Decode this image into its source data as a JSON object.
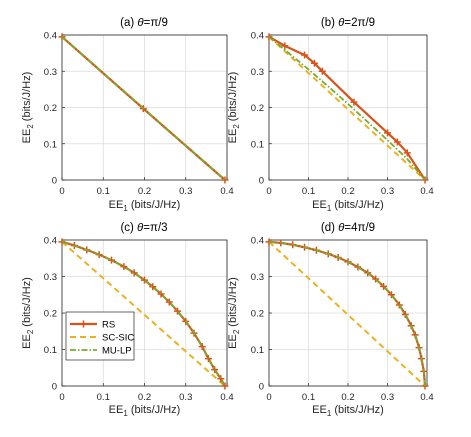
{
  "figure": {
    "xlabel_main": "EE",
    "xlabel_sub": "1",
    "xlabel_units": "(bits/J/Hz)",
    "ylabel_main": "EE",
    "ylabel_sub": "2",
    "ylabel_units": "(bits/J/Hz)"
  },
  "legend": {
    "rs": "RS",
    "scsic": "SC-SIC",
    "mulp": "MU-LP"
  },
  "colors": {
    "rs": "#d95319",
    "scsic": "#edb120",
    "mulp": "#77ac30"
  },
  "chart_data": [
    {
      "type": "line",
      "title_prefix": "(a) ",
      "title_theta": "θ",
      "title_expr": "=π/9",
      "xlim": [
        0,
        0.4
      ],
      "ylim": [
        0,
        0.4
      ],
      "xticks": [
        "0",
        "0.1",
        "0.2",
        "0.3",
        "0.4"
      ],
      "yticks": [
        "0",
        "0.1",
        "0.2",
        "0.3",
        "0.4"
      ],
      "grid": true,
      "series": [
        {
          "name": "RS",
          "x": [
            0,
            0.197,
            0.395
          ],
          "y": [
            0.395,
            0.197,
            0
          ]
        },
        {
          "name": "SC-SIC",
          "x": [
            0,
            0.395
          ],
          "y": [
            0.395,
            0
          ]
        },
        {
          "name": "MU-LP",
          "x": [
            0,
            0.395
          ],
          "y": [
            0.395,
            0
          ]
        }
      ]
    },
    {
      "type": "line",
      "title_prefix": "(b) ",
      "title_theta": "θ",
      "title_expr": "=2π/9",
      "xlim": [
        0,
        0.4
      ],
      "ylim": [
        0,
        0.4
      ],
      "xticks": [
        "0",
        "0.1",
        "0.2",
        "0.3",
        "0.4"
      ],
      "yticks": [
        "0",
        "0.1",
        "0.2",
        "0.3",
        "0.4"
      ],
      "grid": true,
      "series": [
        {
          "name": "RS",
          "x": [
            0,
            0.04,
            0.09,
            0.115,
            0.135,
            0.215,
            0.3,
            0.325,
            0.35,
            0.395
          ],
          "y": [
            0.395,
            0.37,
            0.345,
            0.322,
            0.3,
            0.215,
            0.13,
            0.105,
            0.075,
            0
          ]
        },
        {
          "name": "SC-SIC",
          "x": [
            0,
            0.395
          ],
          "y": [
            0.395,
            0
          ]
        },
        {
          "name": "MU-LP",
          "x": [
            0,
            0.05,
            0.1,
            0.15,
            0.2,
            0.25,
            0.3,
            0.35,
            0.395
          ],
          "y": [
            0.395,
            0.35,
            0.305,
            0.258,
            0.21,
            0.16,
            0.11,
            0.058,
            0
          ]
        }
      ]
    },
    {
      "type": "line",
      "title_prefix": "(c) ",
      "title_theta": "θ",
      "title_expr": "=π/3",
      "xlim": [
        0,
        0.4
      ],
      "ylim": [
        0,
        0.4
      ],
      "xticks": [
        "0",
        "0.1",
        "0.2",
        "0.3",
        "0.4"
      ],
      "yticks": [
        "0",
        "0.1",
        "0.2",
        "0.3",
        "0.4"
      ],
      "grid": true,
      "series": [
        {
          "name": "RS",
          "x": [
            0,
            0.03,
            0.06,
            0.09,
            0.12,
            0.15,
            0.175,
            0.2,
            0.22,
            0.24,
            0.26,
            0.28,
            0.3,
            0.32,
            0.34,
            0.355,
            0.37,
            0.385,
            0.395
          ],
          "y": [
            0.395,
            0.385,
            0.373,
            0.36,
            0.345,
            0.327,
            0.31,
            0.29,
            0.272,
            0.252,
            0.23,
            0.205,
            0.177,
            0.145,
            0.108,
            0.075,
            0.045,
            0.02,
            0
          ]
        },
        {
          "name": "SC-SIC",
          "x": [
            0,
            0.395
          ],
          "y": [
            0.395,
            0
          ]
        },
        {
          "name": "MU-LP",
          "x": [
            0,
            0.03,
            0.06,
            0.09,
            0.12,
            0.15,
            0.175,
            0.2,
            0.22,
            0.24,
            0.26,
            0.28,
            0.3,
            0.32,
            0.34,
            0.355,
            0.37,
            0.385,
            0.395
          ],
          "y": [
            0.395,
            0.385,
            0.373,
            0.36,
            0.345,
            0.327,
            0.31,
            0.29,
            0.272,
            0.252,
            0.23,
            0.205,
            0.177,
            0.145,
            0.108,
            0.075,
            0.045,
            0.02,
            0
          ]
        }
      ]
    },
    {
      "type": "line",
      "title_prefix": "(d) ",
      "title_theta": "θ",
      "title_expr": "=4π/9",
      "xlim": [
        0,
        0.4
      ],
      "ylim": [
        0,
        0.4
      ],
      "xticks": [
        "0",
        "0.1",
        "0.2",
        "0.3",
        "0.4"
      ],
      "yticks": [
        "0",
        "0.1",
        "0.2",
        "0.3",
        "0.4"
      ],
      "grid": true,
      "series": [
        {
          "name": "RS",
          "x": [
            0,
            0.03,
            0.06,
            0.09,
            0.12,
            0.15,
            0.175,
            0.2,
            0.225,
            0.25,
            0.27,
            0.29,
            0.31,
            0.33,
            0.345,
            0.36,
            0.37,
            0.38,
            0.386,
            0.392,
            0.395
          ],
          "y": [
            0.395,
            0.392,
            0.387,
            0.38,
            0.372,
            0.362,
            0.352,
            0.34,
            0.326,
            0.31,
            0.293,
            0.273,
            0.25,
            0.222,
            0.196,
            0.165,
            0.14,
            0.105,
            0.075,
            0.04,
            0
          ]
        },
        {
          "name": "SC-SIC",
          "x": [
            0,
            0.395
          ],
          "y": [
            0.395,
            0
          ]
        },
        {
          "name": "MU-LP",
          "x": [
            0,
            0.03,
            0.06,
            0.09,
            0.12,
            0.15,
            0.175,
            0.2,
            0.225,
            0.25,
            0.27,
            0.29,
            0.31,
            0.33,
            0.345,
            0.36,
            0.37,
            0.38,
            0.386,
            0.392,
            0.395
          ],
          "y": [
            0.395,
            0.392,
            0.387,
            0.38,
            0.372,
            0.362,
            0.352,
            0.34,
            0.326,
            0.31,
            0.293,
            0.273,
            0.25,
            0.222,
            0.196,
            0.165,
            0.14,
            0.105,
            0.075,
            0.04,
            0
          ]
        }
      ]
    }
  ]
}
